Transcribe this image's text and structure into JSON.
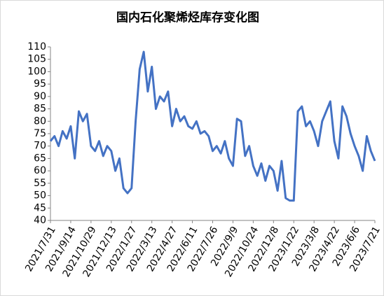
{
  "chart_data": {
    "type": "line",
    "title": "国内石化聚烯烃库存变化图",
    "categories": [
      "2021/7/31",
      null,
      null,
      null,
      null,
      "2021/9/14",
      null,
      null,
      null,
      null,
      "2021/10/29",
      null,
      null,
      null,
      null,
      "2021/12/13",
      null,
      null,
      null,
      null,
      "2022/1/27",
      null,
      null,
      null,
      null,
      "2022/3/13",
      null,
      null,
      null,
      null,
      "2022/4/27",
      null,
      null,
      null,
      null,
      "2022/6/11",
      null,
      null,
      null,
      null,
      "2022/7/26",
      null,
      null,
      null,
      null,
      "2022/9/9",
      null,
      null,
      null,
      null,
      "2022/10/24",
      null,
      null,
      null,
      null,
      "2022/12/8",
      null,
      null,
      null,
      null,
      "2023/1/22",
      null,
      null,
      null,
      null,
      "2023/3/8",
      null,
      null,
      null,
      null,
      "2023/4/22",
      null,
      null,
      null,
      null,
      "2023/6/6",
      null,
      null,
      null,
      null,
      "2023/7/21"
    ],
    "series": [
      {
        "color": "#4472c4",
        "values": [
          72,
          74,
          70,
          76,
          73,
          78,
          65,
          84,
          80,
          83,
          70,
          68,
          72,
          66,
          70,
          68,
          60,
          65,
          53,
          51,
          53,
          80,
          101,
          108,
          92,
          102,
          85,
          90,
          88,
          92,
          78,
          85,
          80,
          82,
          78,
          77,
          80,
          75,
          76,
          74,
          68,
          70,
          67,
          72,
          65,
          62,
          81,
          80,
          66,
          70,
          62,
          58,
          63,
          56,
          62,
          60,
          52,
          64,
          49,
          48,
          48,
          84,
          86,
          78,
          80,
          76,
          70,
          80,
          84,
          88,
          72,
          65,
          86,
          82,
          75,
          70,
          66,
          60,
          74,
          68,
          64
        ]
      }
    ],
    "ylim": [
      40,
      110
    ],
    "yticks": [
      40,
      45,
      50,
      55,
      60,
      65,
      70,
      75,
      80,
      85,
      90,
      95,
      100,
      105,
      110
    ],
    "grid": false
  }
}
